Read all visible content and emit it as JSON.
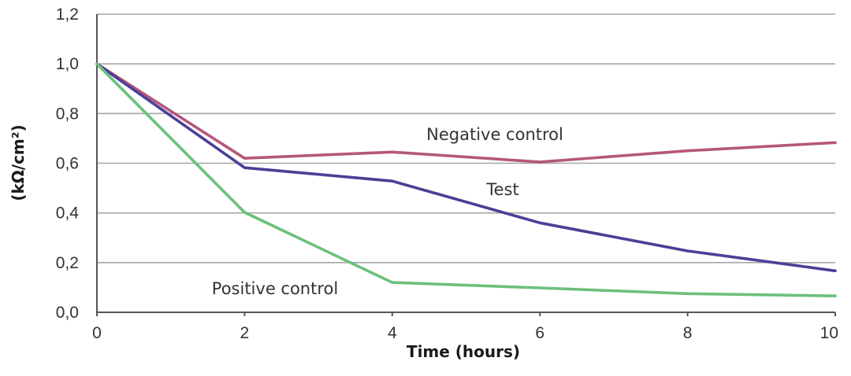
{
  "chart_data": {
    "type": "line",
    "title": "",
    "xlabel": "Time (hours)",
    "ylabel": "(kΩ/cm²)",
    "x": [
      0,
      2,
      4,
      6,
      8,
      10
    ],
    "xticks": [
      "0",
      "2",
      "4",
      "6",
      "8",
      "10"
    ],
    "yticks": [
      "0,0",
      "0,2",
      "0,4",
      "0,6",
      "0,8",
      "1,0",
      "1,2"
    ],
    "xlim": [
      0,
      10
    ],
    "ylim": [
      0,
      1.2
    ],
    "grid": "horizontal",
    "legend": "inline labels",
    "series": [
      {
        "name": "Negative control",
        "color": "#b5577c",
        "values": [
          1.0,
          0.62,
          0.645,
          0.605,
          0.65,
          0.683
        ]
      },
      {
        "name": "Test",
        "color": "#4c3f97",
        "values": [
          1.0,
          0.582,
          0.528,
          0.36,
          0.247,
          0.167
        ]
      },
      {
        "name": "Positive control",
        "color": "#6bc07b",
        "values": [
          1.0,
          0.402,
          0.12,
          0.098,
          0.075,
          0.066
        ]
      }
    ]
  }
}
